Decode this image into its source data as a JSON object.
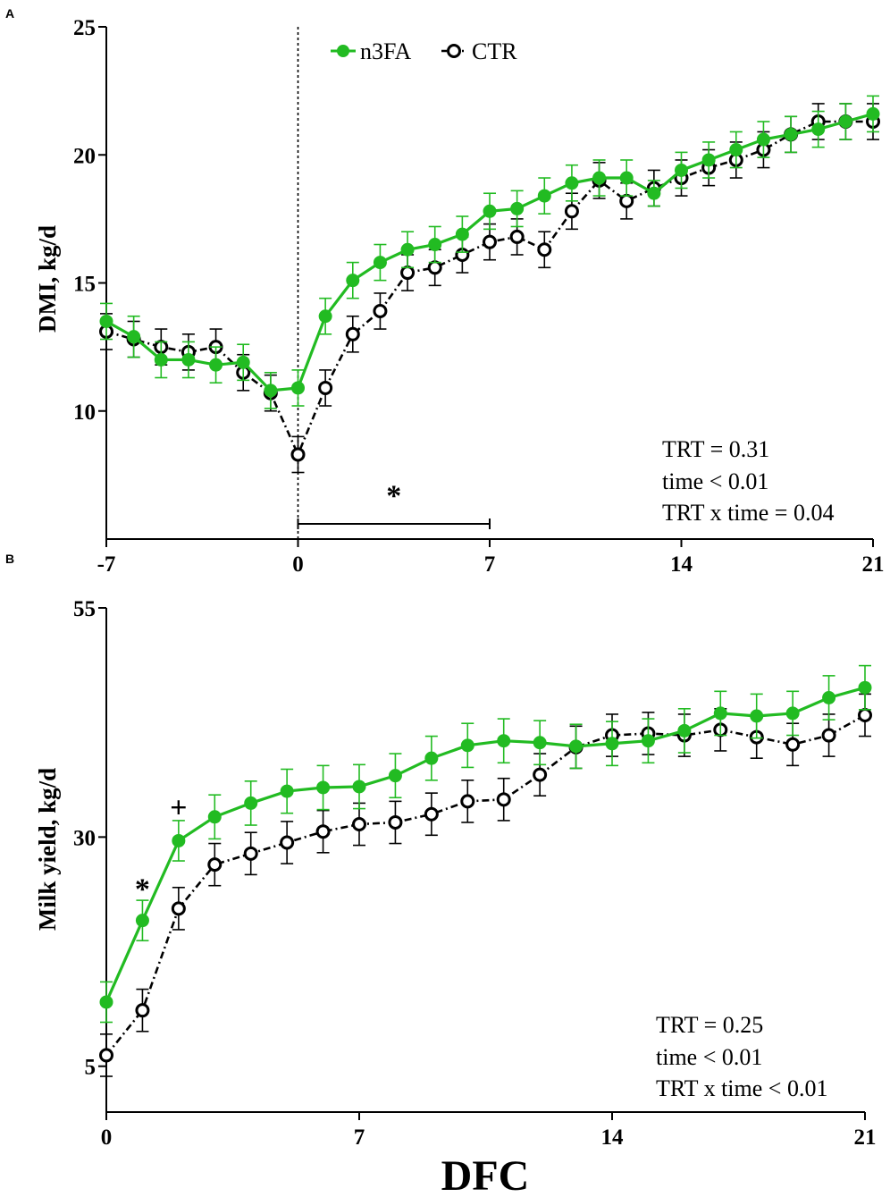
{
  "figure": {
    "xlabel": "DFC"
  },
  "legend": [
    {
      "name": "n3FA",
      "color": "#22bb22",
      "marker": "filled-circle",
      "line": "solid"
    },
    {
      "name": "CTR",
      "color": "#000000",
      "marker": "open-circle",
      "line": "dash-dot"
    }
  ],
  "chart_data": [
    {
      "panel": "A",
      "type": "line",
      "ylabel": "DMI, kg/d",
      "xlim": [
        -7,
        21
      ],
      "ylim": [
        5,
        25
      ],
      "x_ticks": [
        "-7",
        "0",
        "7",
        "14",
        "21"
      ],
      "y_ticks": [
        "10",
        "15",
        "20",
        "25"
      ],
      "x": [
        -7,
        -6,
        -5,
        -4,
        -3,
        -2,
        -1,
        0,
        1,
        2,
        3,
        4,
        5,
        6,
        7,
        8,
        9,
        10,
        11,
        12,
        13,
        14,
        15,
        16,
        17,
        18,
        19,
        20,
        21
      ],
      "series": [
        {
          "name": "n3FA",
          "color": "#22bb22",
          "values": [
            13.5,
            12.9,
            12.0,
            12.0,
            11.8,
            11.9,
            10.8,
            10.9,
            13.7,
            15.1,
            15.8,
            16.3,
            16.5,
            16.9,
            17.8,
            17.9,
            18.4,
            18.9,
            19.1,
            19.1,
            18.5,
            19.4,
            19.8,
            20.2,
            20.6,
            20.8,
            21.0,
            21.3,
            21.6
          ],
          "error": [
            0.7,
            0.8,
            0.7,
            0.7,
            0.7,
            0.7,
            0.7,
            0.7,
            0.7,
            0.7,
            0.7,
            0.7,
            0.7,
            0.7,
            0.7,
            0.7,
            0.7,
            0.7,
            0.7,
            0.7,
            0.5,
            0.7,
            0.7,
            0.7,
            0.7,
            0.7,
            0.7,
            0.7,
            0.7
          ]
        },
        {
          "name": "CTR",
          "color": "#000000",
          "values": [
            13.1,
            12.8,
            12.5,
            12.3,
            12.5,
            11.5,
            10.7,
            8.3,
            10.9,
            13.0,
            13.9,
            15.4,
            15.6,
            16.1,
            16.6,
            16.8,
            16.3,
            17.8,
            19.0,
            18.2,
            18.7,
            19.1,
            19.5,
            19.8,
            20.2,
            20.8,
            21.3,
            21.3,
            21.3
          ],
          "error": [
            0.7,
            0.7,
            0.7,
            0.7,
            0.7,
            0.7,
            0.7,
            0.7,
            0.7,
            0.7,
            0.7,
            0.7,
            0.7,
            0.7,
            0.7,
            0.7,
            0.7,
            0.7,
            0.7,
            0.7,
            0.7,
            0.7,
            0.7,
            0.7,
            0.7,
            0.7,
            0.7,
            0.7,
            0.7
          ]
        }
      ],
      "annotations": {
        "marker": "*",
        "bracket_range": [
          0,
          7
        ],
        "marker_x": 3.5,
        "marker_y": 6.8
      },
      "vline_x": 0,
      "stats": [
        "TRT = 0.31",
        "time < 0.01",
        "TRT x time = 0.04"
      ]
    },
    {
      "panel": "B",
      "type": "line",
      "ylabel": "Milk yield, kg/d",
      "xlim": [
        0,
        21
      ],
      "ylim": [
        0,
        55
      ],
      "x_ticks": [
        "0",
        "7",
        "14",
        "21"
      ],
      "y_ticks": [
        "5",
        "30",
        "55"
      ],
      "x": [
        0,
        1,
        2,
        3,
        4,
        5,
        6,
        7,
        8,
        9,
        10,
        11,
        12,
        13,
        14,
        15,
        16,
        17,
        18,
        19,
        20,
        21
      ],
      "series": [
        {
          "name": "n3FA",
          "color": "#22bb22",
          "values": [
            12.0,
            20.9,
            29.6,
            32.2,
            33.7,
            35.0,
            35.4,
            35.5,
            36.7,
            38.6,
            40.0,
            40.5,
            40.3,
            39.9,
            40.2,
            40.5,
            41.6,
            43.5,
            43.2,
            43.5,
            45.2,
            46.3
          ],
          "error": [
            2.2,
            2.2,
            2.2,
            2.4,
            2.4,
            2.4,
            2.4,
            2.4,
            2.4,
            2.4,
            2.4,
            2.4,
            2.4,
            2.4,
            2.4,
            2.4,
            2.4,
            2.4,
            2.4,
            2.4,
            2.4,
            2.4
          ]
        },
        {
          "name": "CTR",
          "color": "#000000",
          "values": [
            6.2,
            11.1,
            22.2,
            27.0,
            28.2,
            29.4,
            30.6,
            31.4,
            31.6,
            32.5,
            33.9,
            34.1,
            36.8,
            39.8,
            41.1,
            41.3,
            41.1,
            41.7,
            40.9,
            40.1,
            41.1,
            43.3
          ],
          "error": [
            2.3,
            2.3,
            2.3,
            2.3,
            2.3,
            2.3,
            2.3,
            2.3,
            2.3,
            2.3,
            2.3,
            2.3,
            2.3,
            2.3,
            2.3,
            2.3,
            2.3,
            2.3,
            2.3,
            2.3,
            2.3,
            2.3
          ]
        }
      ],
      "annotations": [
        {
          "marker": "*",
          "x": 1,
          "y": 24.6
        },
        {
          "marker": "+",
          "x": 2,
          "y": 33.5
        }
      ],
      "stats": [
        "TRT = 0.25",
        "time < 0.01",
        "TRT x time < 0.01"
      ]
    }
  ]
}
